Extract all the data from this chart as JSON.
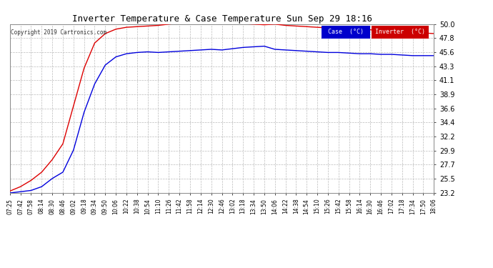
{
  "title": "Inverter Temperature & Case Temperature Sun Sep 29 18:16",
  "copyright": "Copyright 2019 Cartronics.com",
  "background_color": "#ffffff",
  "plot_bg_color": "#ffffff",
  "grid_color": "#bbbbbb",
  "ylim": [
    23.2,
    50.0
  ],
  "yticks": [
    23.2,
    25.5,
    27.7,
    29.9,
    32.2,
    34.4,
    36.6,
    38.9,
    41.1,
    43.3,
    45.6,
    47.8,
    50.0
  ],
  "xtick_labels": [
    "07:25",
    "07:42",
    "07:58",
    "08:14",
    "08:30",
    "08:46",
    "09:02",
    "09:18",
    "09:34",
    "09:50",
    "10:06",
    "10:22",
    "10:38",
    "10:54",
    "11:10",
    "11:26",
    "11:42",
    "11:58",
    "12:14",
    "12:30",
    "12:46",
    "13:02",
    "13:18",
    "13:34",
    "13:50",
    "14:06",
    "14:22",
    "14:38",
    "14:54",
    "15:10",
    "15:26",
    "15:42",
    "15:58",
    "16:14",
    "16:30",
    "16:46",
    "17:02",
    "17:18",
    "17:34",
    "17:50",
    "18:06"
  ],
  "case_color": "#0000dd",
  "inverter_color": "#dd0000",
  "legend_case_bg": "#0000cc",
  "legend_inv_bg": "#cc0000",
  "legend_text": "Case  (°C)",
  "legend_text2": "Inverter  (°C)",
  "inv_key": [
    23.5,
    24.2,
    25.2,
    26.5,
    28.5,
    31.0,
    37.0,
    43.0,
    47.0,
    48.5,
    49.2,
    49.5,
    49.6,
    49.7,
    49.8,
    50.0,
    50.2,
    50.4,
    50.5,
    50.3,
    50.2,
    50.5,
    50.1,
    50.0,
    49.9,
    50.0,
    49.8,
    49.7,
    49.6,
    49.5,
    49.4,
    49.5,
    49.3,
    49.2,
    49.1,
    49.0,
    48.9,
    48.8,
    48.7,
    48.6,
    48.5
  ],
  "case_key": [
    23.2,
    23.4,
    23.6,
    24.2,
    25.5,
    26.5,
    30.0,
    36.0,
    40.5,
    43.5,
    44.8,
    45.3,
    45.5,
    45.6,
    45.5,
    45.6,
    45.7,
    45.8,
    45.9,
    46.0,
    45.9,
    46.1,
    46.3,
    46.4,
    46.5,
    46.0,
    45.9,
    45.8,
    45.7,
    45.6,
    45.5,
    45.5,
    45.4,
    45.3,
    45.3,
    45.2,
    45.2,
    45.1,
    45.0,
    45.0,
    45.0
  ]
}
